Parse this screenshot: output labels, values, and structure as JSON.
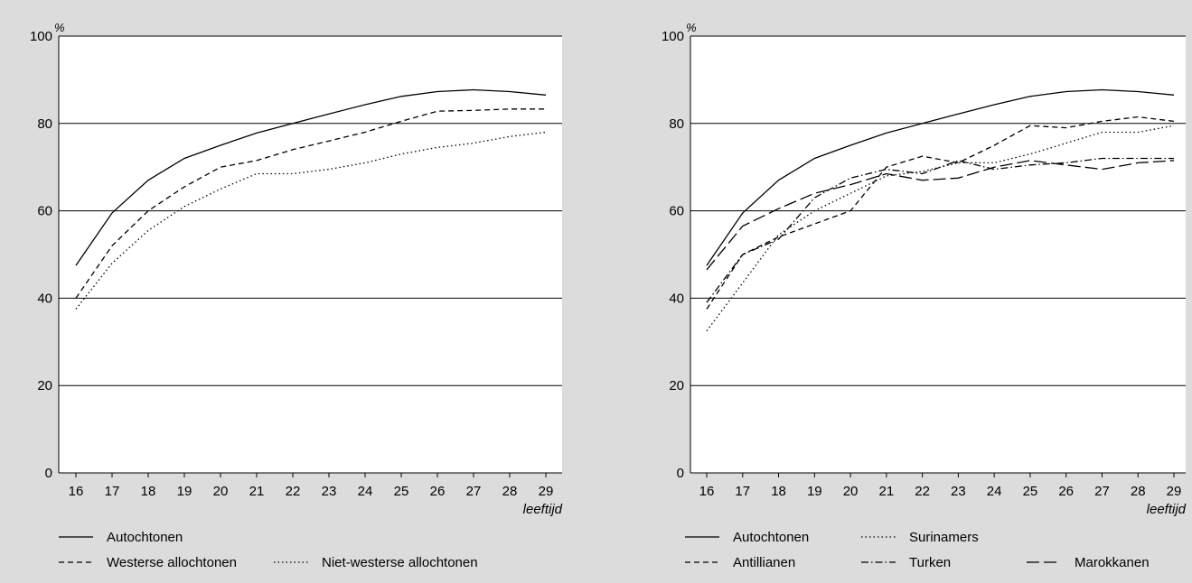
{
  "chart_data": [
    {
      "type": "line",
      "y_unit_label": "%",
      "xlabel": "leeftijd",
      "x": [
        16,
        17,
        18,
        19,
        20,
        21,
        22,
        23,
        24,
        25,
        26,
        27,
        28,
        29
      ],
      "ylim": [
        0,
        100
      ],
      "y_ticks": [
        0,
        20,
        40,
        60,
        80,
        100
      ],
      "grid": true,
      "legend_position": "bottom",
      "series": [
        {
          "name": "Autochtonen",
          "dash": "solid",
          "color": "#000000",
          "values": [
            47.5,
            59.5,
            67,
            72,
            75,
            77.8,
            80,
            82.2,
            84.3,
            86.2,
            87.3,
            87.7,
            87.3,
            86.5
          ]
        },
        {
          "name": "Westerse allochtonen",
          "dash": "dashed",
          "color": "#000000",
          "values": [
            40,
            52,
            60,
            65.5,
            70,
            71.5,
            74,
            76,
            78,
            80.5,
            82.8,
            83,
            83.3,
            83.3
          ]
        },
        {
          "name": "Niet-westerse allochtonen",
          "dash": "dotted",
          "color": "#000000",
          "values": [
            37.5,
            48,
            55.5,
            61,
            65,
            68.5,
            68.5,
            69.5,
            71,
            73,
            74.5,
            75.5,
            77,
            78
          ]
        }
      ]
    },
    {
      "type": "line",
      "y_unit_label": "%",
      "xlabel": "leeftijd",
      "x": [
        16,
        17,
        18,
        19,
        20,
        21,
        22,
        23,
        24,
        25,
        26,
        27,
        28,
        29
      ],
      "ylim": [
        0,
        100
      ],
      "y_ticks": [
        0,
        20,
        40,
        60,
        80,
        100
      ],
      "grid": true,
      "legend_position": "bottom",
      "series": [
        {
          "name": "Autochtonen",
          "dash": "solid",
          "color": "#000000",
          "values": [
            47.5,
            59.5,
            67,
            72,
            75,
            77.8,
            80,
            82.2,
            84.3,
            86.2,
            87.3,
            87.7,
            87.3,
            86.5
          ]
        },
        {
          "name": "Surinamers",
          "dash": "dotted",
          "color": "#000000",
          "values": [
            32.5,
            43.5,
            54.5,
            60,
            64,
            68,
            69,
            71,
            71,
            73,
            75.5,
            78,
            78,
            79.5
          ]
        },
        {
          "name": "Antillianen",
          "dash": "dashed",
          "color": "#000000",
          "values": [
            37.5,
            50,
            54,
            57,
            60,
            70,
            72.5,
            71,
            75,
            79.5,
            79,
            80.5,
            81.5,
            80.5
          ]
        },
        {
          "name": "Turken",
          "dash": "dashdot",
          "color": "#000000",
          "values": [
            39,
            50,
            53.5,
            63,
            67.5,
            69.5,
            68.5,
            71.5,
            69.5,
            70.5,
            71,
            72,
            72,
            72
          ]
        },
        {
          "name": "Marokkanen",
          "dash": "longdash",
          "color": "#000000",
          "values": [
            46.5,
            56.5,
            60.5,
            64,
            66,
            68.5,
            67,
            67.5,
            70,
            71.5,
            70.5,
            69.5,
            71,
            71.5
          ]
        }
      ]
    }
  ]
}
